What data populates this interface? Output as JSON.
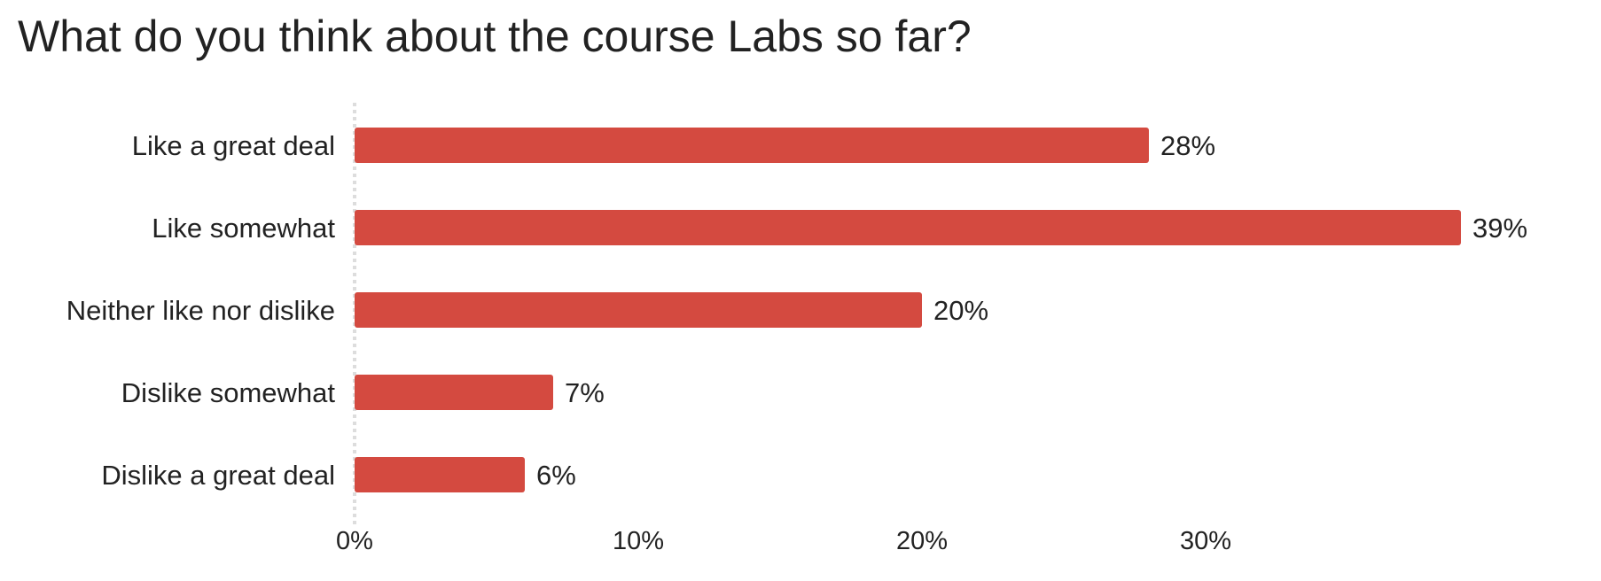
{
  "chart_data": {
    "type": "bar",
    "orientation": "horizontal",
    "title": "What do you think about the course Labs so far?",
    "xlabel": "",
    "ylabel": "",
    "categories": [
      "Like a great deal",
      "Like somewhat",
      "Neither like nor dislike",
      "Dislike somewhat",
      "Dislike a great deal"
    ],
    "values": [
      28,
      39,
      20,
      7,
      6
    ],
    "value_labels": [
      "28%",
      "39%",
      "20%",
      "7%",
      "6%"
    ],
    "xlim": [
      0,
      40
    ],
    "x_ticks": [
      0,
      10,
      20,
      30
    ],
    "x_tick_labels": [
      "0%",
      "10%",
      "20%",
      "30%"
    ],
    "bar_color": "#d44a40",
    "zero_line_style": "dotted",
    "grid": false,
    "legend": "none"
  }
}
